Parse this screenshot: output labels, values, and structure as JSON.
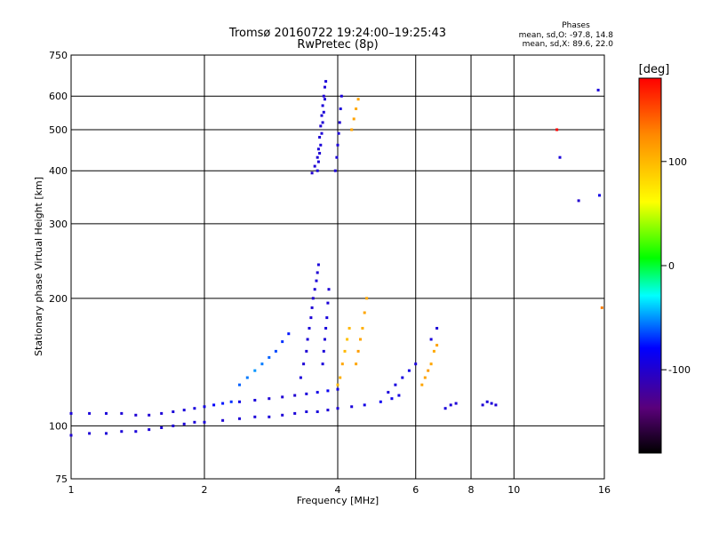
{
  "header": {
    "title_line1": "Tromsø 20160722 19:24:00–19:25:43",
    "title_line2": "RwPretec (8p)",
    "phases_title": "Phases",
    "phases_o": "mean, sd,O: -97.8, 14.8",
    "phases_x": "mean, sd,X:  89.6, 22.0"
  },
  "colorbar": {
    "unit": "[deg]",
    "ticks": [
      {
        "value": 100,
        "label": "100"
      },
      {
        "value": 0,
        "label": "0"
      },
      {
        "value": -100,
        "label": "-100"
      }
    ],
    "range": [
      -180,
      180
    ]
  },
  "chart_data": {
    "type": "scatter",
    "xlabel": "Frequency [MHz]",
    "ylabel": "Stationary phase Virtual Height [km]",
    "xscale": "log",
    "yscale": "log",
    "xlim": [
      1,
      16
    ],
    "ylim": [
      75,
      750
    ],
    "x_ticks": [
      {
        "value": 1,
        "label": "1"
      },
      {
        "value": 2,
        "label": "2"
      },
      {
        "value": 4,
        "label": "4"
      },
      {
        "value": 6,
        "label": "6"
      },
      {
        "value": 8,
        "label": "8"
      },
      {
        "value": 10,
        "label": "10"
      },
      {
        "value": 16,
        "label": "16"
      }
    ],
    "y_ticks": [
      {
        "value": 75,
        "label": "75"
      },
      {
        "value": 100,
        "label": "100"
      },
      {
        "value": 200,
        "label": "200"
      },
      {
        "value": 300,
        "label": "300"
      },
      {
        "value": 400,
        "label": "400"
      },
      {
        "value": 500,
        "label": "500"
      },
      {
        "value": 600,
        "label": "600"
      },
      {
        "value": 750,
        "label": "750"
      }
    ],
    "grid": true,
    "points": [
      [
        1.0,
        107,
        -95
      ],
      [
        1.1,
        107,
        -95
      ],
      [
        1.2,
        107,
        -96
      ],
      [
        1.3,
        107,
        -97
      ],
      [
        1.4,
        106,
        -98
      ],
      [
        1.5,
        106,
        -98
      ],
      [
        1.6,
        107,
        -97
      ],
      [
        1.7,
        108,
        -96
      ],
      [
        1.8,
        109,
        -95
      ],
      [
        1.9,
        110,
        -94
      ],
      [
        2.0,
        111,
        -90
      ],
      [
        2.1,
        112,
        -80
      ],
      [
        2.2,
        113,
        -75
      ],
      [
        2.3,
        114,
        -70
      ],
      [
        2.4,
        114,
        -90
      ],
      [
        2.6,
        115,
        -95
      ],
      [
        2.8,
        116,
        -97
      ],
      [
        3.0,
        117,
        -98
      ],
      [
        3.2,
        118,
        -99
      ],
      [
        3.4,
        119,
        -95
      ],
      [
        3.6,
        120,
        -90
      ],
      [
        3.8,
        121,
        -85
      ],
      [
        4.0,
        122,
        -90
      ],
      [
        1.0,
        95,
        -98
      ],
      [
        1.1,
        96,
        -97
      ],
      [
        1.2,
        96,
        -97
      ],
      [
        1.3,
        97,
        -96
      ],
      [
        1.4,
        97,
        -95
      ],
      [
        1.5,
        98,
        -96
      ],
      [
        1.6,
        99,
        -97
      ],
      [
        1.7,
        100,
        -98
      ],
      [
        1.8,
        101,
        -97
      ],
      [
        1.9,
        102,
        -96
      ],
      [
        2.0,
        102,
        -95
      ],
      [
        2.2,
        103,
        -98
      ],
      [
        2.4,
        104,
        -97
      ],
      [
        2.6,
        105,
        -96
      ],
      [
        2.8,
        105,
        -95
      ],
      [
        3.0,
        106,
        -97
      ],
      [
        3.2,
        107,
        -96
      ],
      [
        3.4,
        108,
        -95
      ],
      [
        3.6,
        108,
        -94
      ],
      [
        3.8,
        109,
        -96
      ],
      [
        4.0,
        110,
        -97
      ],
      [
        4.3,
        111,
        -95
      ],
      [
        4.6,
        112,
        -90
      ],
      [
        5.0,
        114,
        -85
      ],
      [
        5.3,
        116,
        -88
      ],
      [
        5.5,
        118,
        -92
      ],
      [
        2.4,
        125,
        -60
      ],
      [
        2.5,
        130,
        -55
      ],
      [
        2.6,
        135,
        -50
      ],
      [
        2.7,
        140,
        -55
      ],
      [
        2.8,
        145,
        -60
      ],
      [
        2.9,
        150,
        -65
      ],
      [
        3.0,
        158,
        -70
      ],
      [
        3.1,
        165,
        -75
      ],
      [
        3.3,
        130,
        -95
      ],
      [
        3.35,
        140,
        -97
      ],
      [
        3.4,
        150,
        -98
      ],
      [
        3.42,
        160,
        -96
      ],
      [
        3.45,
        170,
        -95
      ],
      [
        3.48,
        180,
        -97
      ],
      [
        3.5,
        190,
        -98
      ],
      [
        3.52,
        200,
        -99
      ],
      [
        3.55,
        210,
        -97
      ],
      [
        3.58,
        220,
        -96
      ],
      [
        3.6,
        230,
        -98
      ],
      [
        3.62,
        240,
        -95
      ],
      [
        3.7,
        140,
        -95
      ],
      [
        3.72,
        150,
        -96
      ],
      [
        3.74,
        160,
        -97
      ],
      [
        3.76,
        170,
        -95
      ],
      [
        3.78,
        180,
        -94
      ],
      [
        3.8,
        195,
        -96
      ],
      [
        3.82,
        210,
        -97
      ],
      [
        4.0,
        125,
        100
      ],
      [
        4.05,
        130,
        105
      ],
      [
        4.1,
        140,
        110
      ],
      [
        4.15,
        150,
        100
      ],
      [
        4.2,
        160,
        95
      ],
      [
        4.25,
        170,
        100
      ],
      [
        4.4,
        140,
        110
      ],
      [
        4.45,
        150,
        115
      ],
      [
        4.5,
        160,
        110
      ],
      [
        4.55,
        170,
        105
      ],
      [
        4.6,
        185,
        110
      ],
      [
        4.65,
        200,
        108
      ],
      [
        3.5,
        395,
        -100
      ],
      [
        3.55,
        410,
        -98
      ],
      [
        3.6,
        430,
        -97
      ],
      [
        3.62,
        450,
        -96
      ],
      [
        3.64,
        480,
        -98
      ],
      [
        3.66,
        510,
        -99
      ],
      [
        3.68,
        540,
        -97
      ],
      [
        3.7,
        570,
        -96
      ],
      [
        3.72,
        600,
        -98
      ],
      [
        3.74,
        630,
        -97
      ],
      [
        3.76,
        650,
        -95
      ],
      [
        3.6,
        400,
        -95
      ],
      [
        3.62,
        420,
        -97
      ],
      [
        3.64,
        440,
        -98
      ],
      [
        3.66,
        460,
        -96
      ],
      [
        3.68,
        490,
        -97
      ],
      [
        3.7,
        520,
        -98
      ],
      [
        3.72,
        550,
        -96
      ],
      [
        3.74,
        590,
        -97
      ],
      [
        3.95,
        400,
        -97
      ],
      [
        3.98,
        430,
        -96
      ],
      [
        4.0,
        460,
        -95
      ],
      [
        4.02,
        490,
        -97
      ],
      [
        4.04,
        520,
        -98
      ],
      [
        4.06,
        560,
        -96
      ],
      [
        4.08,
        600,
        -95
      ],
      [
        4.3,
        500,
        110
      ],
      [
        4.35,
        530,
        112
      ],
      [
        4.4,
        560,
        108
      ],
      [
        4.45,
        590,
        110
      ],
      [
        5.2,
        120,
        -95
      ],
      [
        5.4,
        125,
        -93
      ],
      [
        5.6,
        130,
        -92
      ],
      [
        5.8,
        135,
        -90
      ],
      [
        6.0,
        140,
        -95
      ],
      [
        6.2,
        125,
        110
      ],
      [
        6.3,
        130,
        112
      ],
      [
        6.4,
        135,
        115
      ],
      [
        6.5,
        140,
        110
      ],
      [
        6.6,
        150,
        108
      ],
      [
        6.7,
        155,
        112
      ],
      [
        6.5,
        160,
        -95
      ],
      [
        6.7,
        170,
        -97
      ],
      [
        7.0,
        110,
        -95
      ],
      [
        7.2,
        112,
        -96
      ],
      [
        7.4,
        113,
        -97
      ],
      [
        8.5,
        112,
        -98
      ],
      [
        8.7,
        114,
        -96
      ],
      [
        8.9,
        113,
        -95
      ],
      [
        9.1,
        112,
        -97
      ],
      [
        12.5,
        500,
        180
      ],
      [
        12.7,
        430,
        -95
      ],
      [
        14.0,
        340,
        -100
      ],
      [
        15.5,
        620,
        -95
      ],
      [
        15.6,
        350,
        -90
      ],
      [
        15.8,
        190,
        130
      ]
    ]
  }
}
